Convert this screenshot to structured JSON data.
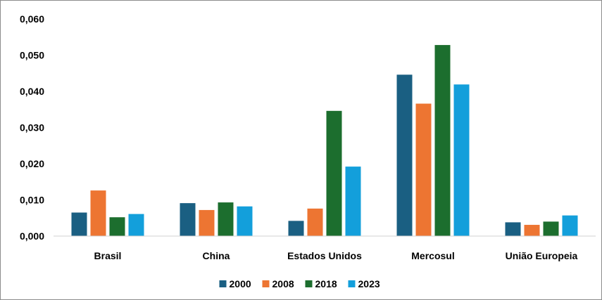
{
  "chart_data": {
    "type": "bar",
    "categories": [
      "Brasil",
      "China",
      "Estados Unidos",
      "Mercosul",
      "União Europeia"
    ],
    "series": [
      {
        "name": "2000",
        "color": "#1a5f82",
        "values": [
          0.0065,
          0.0091,
          0.0042,
          0.0446,
          0.0038
        ]
      },
      {
        "name": "2008",
        "color": "#ed7532",
        "values": [
          0.0126,
          0.0072,
          0.0076,
          0.0366,
          0.0031
        ]
      },
      {
        "name": "2018",
        "color": "#1c6e2e",
        "values": [
          0.0052,
          0.0093,
          0.0346,
          0.0528,
          0.004
        ]
      },
      {
        "name": "2023",
        "color": "#139fdb",
        "values": [
          0.0061,
          0.0082,
          0.0192,
          0.0419,
          0.0057
        ]
      }
    ],
    "ylim": [
      0,
      0.06
    ],
    "yticks": [
      "0,000",
      "0,010",
      "0,020",
      "0,030",
      "0,040",
      "0,050",
      "0,060"
    ],
    "grid": false,
    "legend_position": "bottom"
  }
}
